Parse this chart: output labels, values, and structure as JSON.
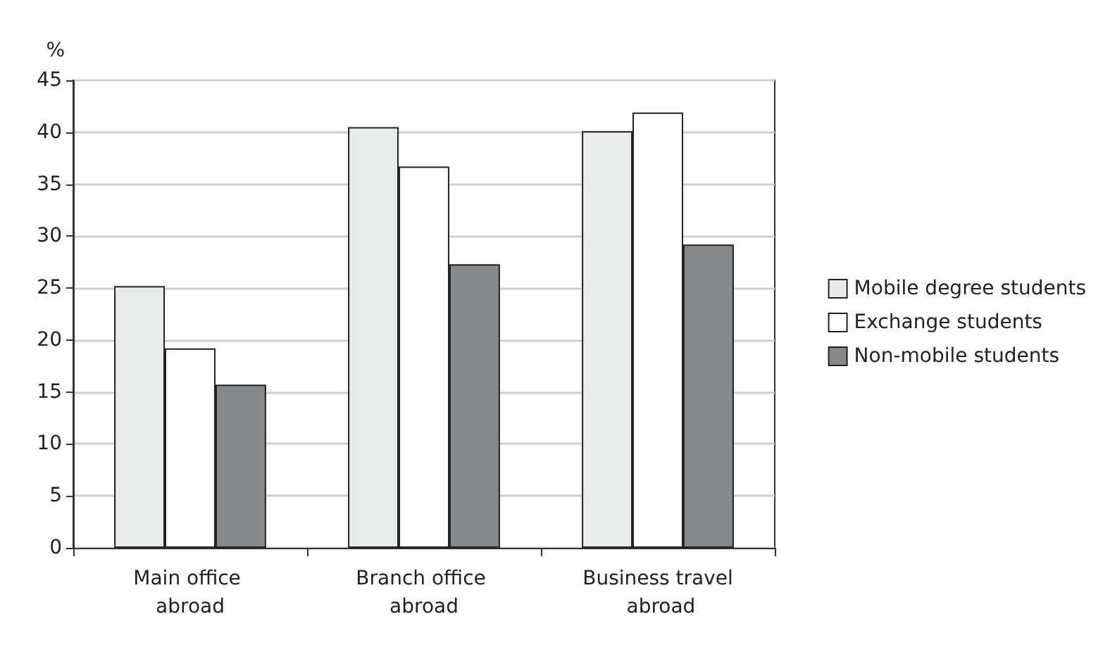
{
  "chart_data": {
    "type": "bar",
    "ylabel": "%",
    "categories": [
      "Main office abroad",
      "Branch office abroad",
      "Business travel abroad"
    ],
    "series": [
      {
        "name": "Mobile degree students",
        "color": "#e9ebea",
        "values": [
          25.2,
          40.5,
          40.1
        ]
      },
      {
        "name": "Exchange students",
        "color": "#ffffff",
        "values": [
          19.2,
          36.7,
          41.9
        ]
      },
      {
        "name": "Non-mobile students",
        "color": "#87888a",
        "values": [
          15.7,
          27.3,
          29.2
        ]
      }
    ],
    "ylim": [
      0,
      45
    ],
    "yticks": [
      0,
      5,
      10,
      15,
      20,
      25,
      30,
      35,
      40,
      45
    ],
    "grid": "y",
    "legend": "right"
  }
}
